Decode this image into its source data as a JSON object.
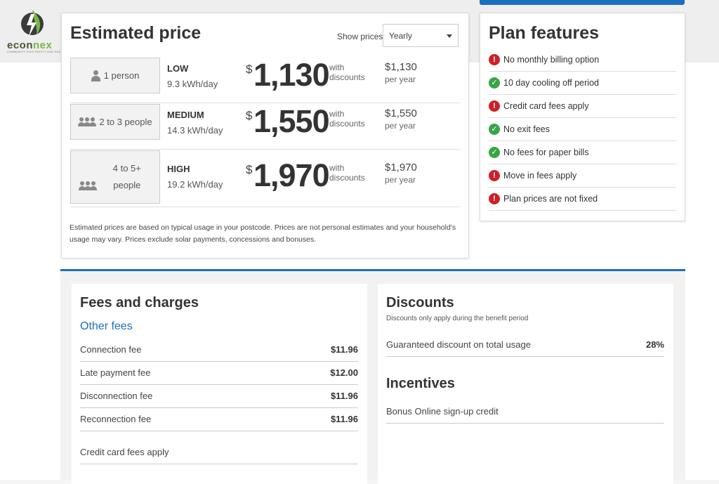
{
  "header": {
    "brand_name_a": "econ",
    "brand_name_b": "nex",
    "brand_tagline": "COMMUNITY ELECTRICITY AND GAS",
    "accent_color": "#1a6fc0"
  },
  "estimate": {
    "title": "Estimated price",
    "show_prices_label": "Show prices:",
    "show_prices_value": "Yearly",
    "rows": [
      {
        "household": "1 person",
        "level": "LOW",
        "usage": "9.3 kWh/day",
        "currency": "$",
        "price": "1,130",
        "with_text": "with discounts",
        "yearly": "$1,130",
        "per": "per year"
      },
      {
        "household": "2 to 3 people",
        "level": "MEDIUM",
        "usage": "14.3 kWh/day",
        "currency": "$",
        "price": "1,550",
        "with_text": "with discounts",
        "yearly": "$1,550",
        "per": "per year"
      },
      {
        "household": "4 to 5+ people",
        "level": "HIGH",
        "usage": "19.2 kWh/day",
        "currency": "$",
        "price": "1,970",
        "with_text": "with discounts",
        "yearly": "$1,970",
        "per": "per year"
      }
    ],
    "disclaimer": "Estimated prices are based on typical usage in your postcode. Prices are not personal estimates and your household's usage may vary. Prices exclude solar payments, concessions and bonuses."
  },
  "features": {
    "title": "Plan features",
    "items": [
      {
        "label": "No monthly billing option",
        "status": "bad",
        "icon": "alert-icon"
      },
      {
        "label": "10 day cooling off period",
        "status": "good",
        "icon": "check-icon"
      },
      {
        "label": "Credit card fees apply",
        "status": "bad",
        "icon": "alert-icon"
      },
      {
        "label": "No exit fees",
        "status": "good",
        "icon": "check-icon"
      },
      {
        "label": "No fees for paper bills",
        "status": "good",
        "icon": "check-icon"
      },
      {
        "label": "Move in fees apply",
        "status": "bad",
        "icon": "alert-icon"
      },
      {
        "label": "Plan prices are not fixed",
        "status": "bad",
        "icon": "alert-icon"
      }
    ]
  },
  "fees": {
    "title": "Fees and charges",
    "subtitle": "Other fees",
    "rows": [
      {
        "label": "Connection fee",
        "value": "$11.96"
      },
      {
        "label": "Late payment fee",
        "value": "$12.00"
      },
      {
        "label": "Disconnection fee",
        "value": "$11.96"
      },
      {
        "label": "Reconnection fee",
        "value": "$11.96"
      }
    ],
    "note": "Credit card fees apply"
  },
  "discounts": {
    "title": "Discounts",
    "subtitle": "Discounts only apply during the benefit period",
    "rows": [
      {
        "label": "Guaranteed discount on total usage",
        "value": "28%"
      }
    ],
    "incentives_title": "Incentives",
    "incentives": [
      {
        "label": "Bonus Online sign-up credit"
      }
    ]
  }
}
